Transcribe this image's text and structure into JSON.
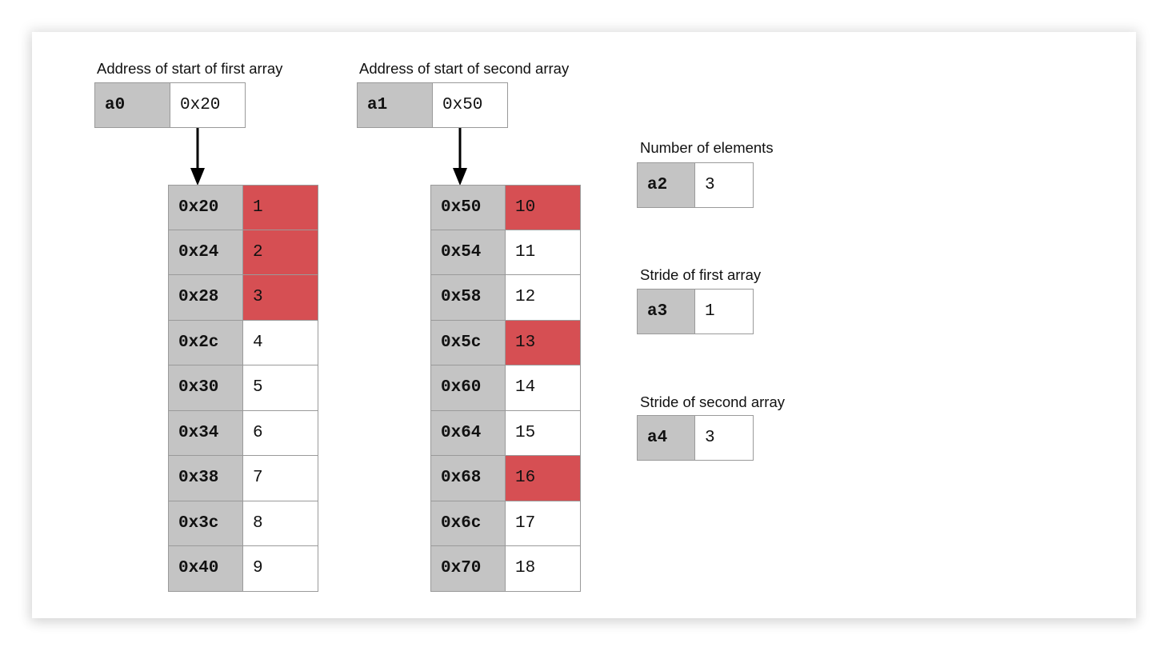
{
  "colors": {
    "register_bg": "#c4c4c4",
    "highlight": "#d64f53",
    "border": "#9a9a9a"
  },
  "registers": {
    "a0": {
      "caption": "Address of start of first array",
      "name": "a0",
      "value": "0x20"
    },
    "a1": {
      "caption": "Address of start of second array",
      "name": "a1",
      "value": "0x50"
    },
    "a2": {
      "caption": "Number of elements",
      "name": "a2",
      "value": "3"
    },
    "a3": {
      "caption": "Stride of first array",
      "name": "a3",
      "value": "1"
    },
    "a4": {
      "caption": "Stride of second array",
      "name": "a4",
      "value": "3"
    }
  },
  "arrays": {
    "first": [
      {
        "addr": "0x20",
        "value": "1",
        "highlight": true
      },
      {
        "addr": "0x24",
        "value": "2",
        "highlight": true
      },
      {
        "addr": "0x28",
        "value": "3",
        "highlight": true
      },
      {
        "addr": "0x2c",
        "value": "4",
        "highlight": false
      },
      {
        "addr": "0x30",
        "value": "5",
        "highlight": false
      },
      {
        "addr": "0x34",
        "value": "6",
        "highlight": false
      },
      {
        "addr": "0x38",
        "value": "7",
        "highlight": false
      },
      {
        "addr": "0x3c",
        "value": "8",
        "highlight": false
      },
      {
        "addr": "0x40",
        "value": "9",
        "highlight": false
      }
    ],
    "second": [
      {
        "addr": "0x50",
        "value": "10",
        "highlight": true
      },
      {
        "addr": "0x54",
        "value": "11",
        "highlight": false
      },
      {
        "addr": "0x58",
        "value": "12",
        "highlight": false
      },
      {
        "addr": "0x5c",
        "value": "13",
        "highlight": true
      },
      {
        "addr": "0x60",
        "value": "14",
        "highlight": false
      },
      {
        "addr": "0x64",
        "value": "15",
        "highlight": false
      },
      {
        "addr": "0x68",
        "value": "16",
        "highlight": true
      },
      {
        "addr": "0x6c",
        "value": "17",
        "highlight": false
      },
      {
        "addr": "0x70",
        "value": "18",
        "highlight": false
      }
    ]
  }
}
